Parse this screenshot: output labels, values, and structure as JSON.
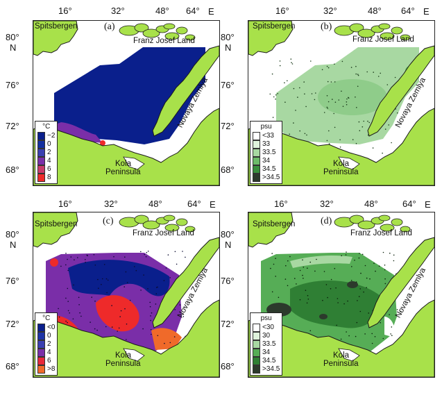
{
  "axes": {
    "lon_ticks": [
      "16°",
      "32°",
      "48°",
      "64°"
    ],
    "lon_unit": "E",
    "lat_ticks": [
      "80°",
      "76°",
      "72°",
      "68°"
    ],
    "lat_unit": "N"
  },
  "places": {
    "spitsbergen": "Spitsbergen",
    "franz_josef_land": "Franz Josef Land",
    "novaya_zemlya": "Novaya Zemlya",
    "kola_line1": "Kola",
    "kola_line2": "Peninsula"
  },
  "panels": [
    {
      "id": "a",
      "label": "(a)",
      "legend_title": "°C",
      "legend": [
        {
          "label": "−2",
          "color": "#0a1f8c"
        },
        {
          "label": "0",
          "color": "#14309f"
        },
        {
          "label": "2",
          "color": "#3a3fb0"
        },
        {
          "label": "4",
          "color": "#7a2ea8"
        },
        {
          "label": "6",
          "color": "#c83a6a"
        },
        {
          "label": "8",
          "color": "#ee2a2a"
        }
      ]
    },
    {
      "id": "b",
      "label": "(b)",
      "legend_title": "psu",
      "legend": [
        {
          "label": "<33",
          "color": "#ffffff"
        },
        {
          "label": "33",
          "color": "#dff2dc"
        },
        {
          "label": "33.5",
          "color": "#a8d8a2"
        },
        {
          "label": "34",
          "color": "#6dbb6a"
        },
        {
          "label": "34.5",
          "color": "#3a8f3e"
        },
        {
          "label": ">34.5",
          "color": "#2c3a2c"
        }
      ]
    },
    {
      "id": "c",
      "label": "(c)",
      "legend_title": "°C",
      "legend": [
        {
          "label": "<0",
          "color": "#0a1f8c"
        },
        {
          "label": "0",
          "color": "#1d33a6"
        },
        {
          "label": "2",
          "color": "#3a3fb0"
        },
        {
          "label": "4",
          "color": "#7a2ea8"
        },
        {
          "label": "6",
          "color": "#e8283a"
        },
        {
          "label": ">8",
          "color": "#f06a2a"
        }
      ]
    },
    {
      "id": "d",
      "label": "(d)",
      "legend_title": "psu",
      "legend": [
        {
          "label": "<30",
          "color": "#ffffff"
        },
        {
          "label": "30",
          "color": "#dff2dc"
        },
        {
          "label": "33.5",
          "color": "#a8d8a2"
        },
        {
          "label": "34",
          "color": "#56ad56"
        },
        {
          "label": "34.5",
          "color": "#2f7f34"
        },
        {
          "label": ">34.5",
          "color": "#2c3a2c"
        }
      ]
    }
  ],
  "colors": {
    "land": "#a8e14a",
    "land_edge": "#1a1a1a",
    "temp_cold": "#0a1f8c",
    "temp_mid": "#7a2ea8",
    "temp_warm": "#ee2a2a",
    "sal_light": "#a8d8a2",
    "sal_mid": "#56ad56",
    "sal_dark": "#2f7f34"
  }
}
